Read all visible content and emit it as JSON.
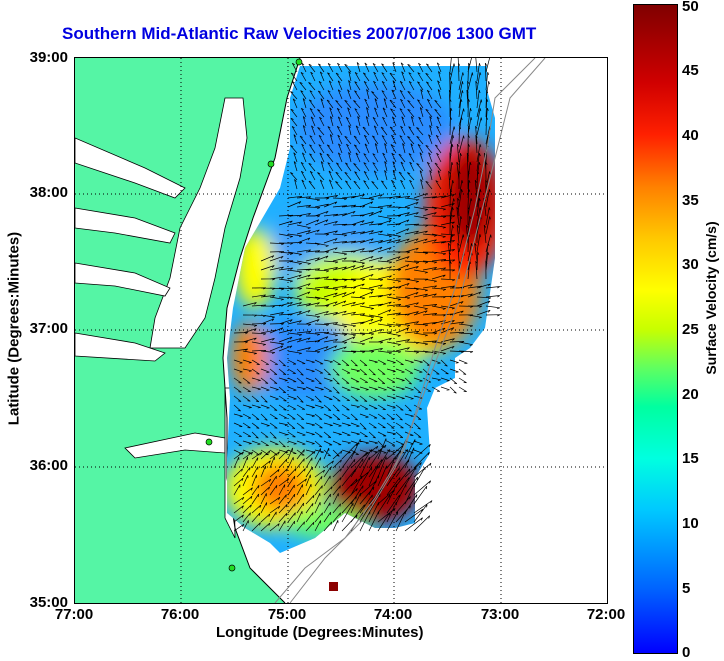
{
  "title": "Southern Mid-Atlantic Raw Velocities 2007/07/06 1300 GMT",
  "x_axis": {
    "title": "Longitude (Degrees:Minutes)",
    "ticks": [
      "77:00",
      "76:00",
      "75:00",
      "74:00",
      "73:00",
      "72:00"
    ]
  },
  "y_axis": {
    "title": "Latitude (Degrees:Minutes)",
    "ticks": [
      "39:00",
      "38:00",
      "37:00",
      "36:00",
      "35:00"
    ]
  },
  "colorbar": {
    "title": "Surface Velocity (cm/s)",
    "ticks": [
      "50",
      "45",
      "40",
      "35",
      "30",
      "25",
      "20",
      "15",
      "10",
      "5",
      "0"
    ]
  },
  "colors": {
    "title": "#0000e0",
    "land": "#55f5a5",
    "low_velocity": "#2a8cff",
    "high_velocity": "#8b0000"
  }
}
